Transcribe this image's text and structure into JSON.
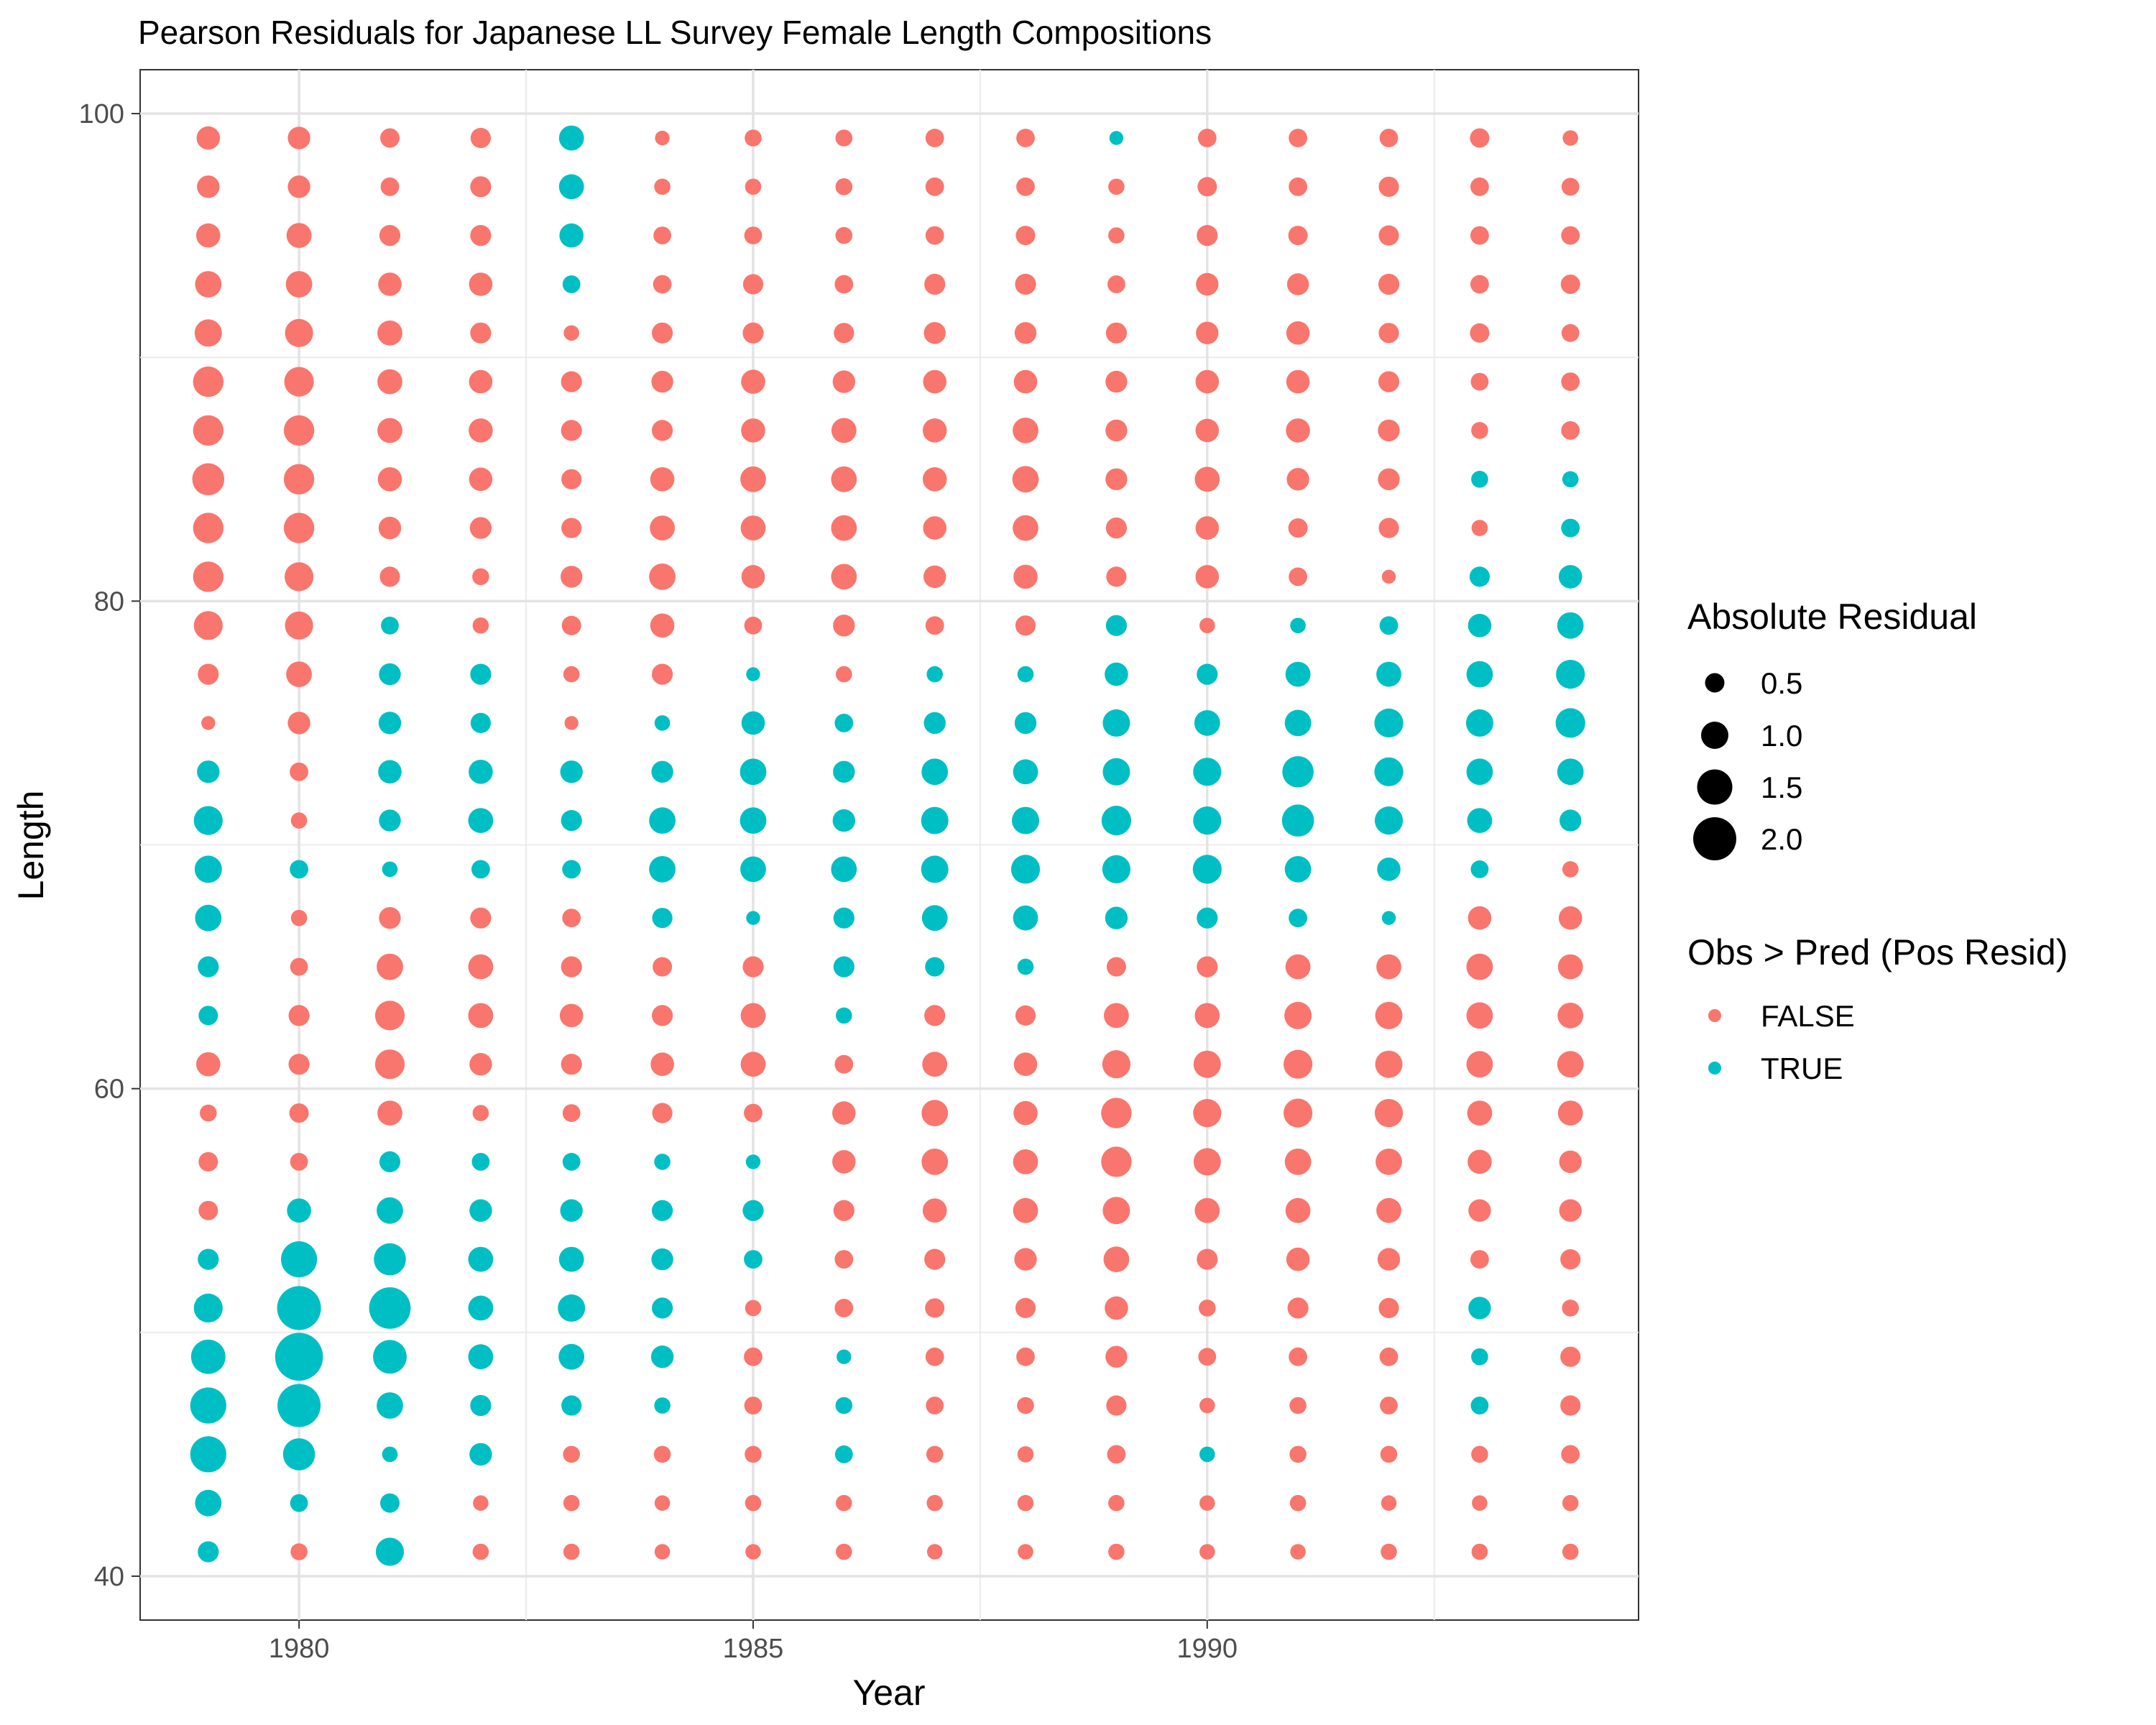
{
  "chart_data": {
    "type": "scatter",
    "title": "Pearson Residuals for Japanese LL Survey Female Length Compositions",
    "xlabel": "Year",
    "ylabel": "Length",
    "xlim": [
      1978.25,
      1994.75
    ],
    "ylim": [
      38.2,
      101.8
    ],
    "x_ticks": [
      1980,
      1985,
      1990
    ],
    "y_ticks": [
      40,
      60,
      80,
      100
    ],
    "grid": true,
    "legend_position": "right",
    "years": [
      1979,
      1980,
      1981,
      1982,
      1983,
      1984,
      1985,
      1986,
      1987,
      1988,
      1989,
      1990,
      1991,
      1992,
      1993,
      1994
    ],
    "lengths": [
      41,
      43,
      45,
      47,
      49,
      51,
      53,
      55,
      57,
      59,
      61,
      63,
      65,
      67,
      69,
      71,
      73,
      75,
      77,
      79,
      81,
      83,
      85,
      87,
      89,
      91,
      93,
      95,
      97,
      99
    ],
    "size_legend": {
      "title": "Absolute Residual",
      "labels": [
        "0.5",
        "1.0",
        "1.5",
        "2.0"
      ],
      "values": [
        0.5,
        1.0,
        1.5,
        2.0
      ]
    },
    "color_legend": {
      "title": "Obs > Pred (Pos Resid)",
      "labels": [
        "FALSE",
        "TRUE"
      ],
      "colors": [
        "#F8766D",
        "#00BFC4"
      ]
    },
    "series": [
      {
        "year": 1979,
        "abs": [
          0.6,
          0.95,
          1.55,
          1.55,
          1.45,
          1.1,
          0.6,
          0.5,
          0.5,
          0.35,
          0.8,
          0.5,
          0.6,
          0.95,
          1.0,
          1.1,
          0.7,
          0.15,
          0.6,
          1.1,
          1.2,
          1.2,
          1.3,
          1.2,
          1.2,
          1.0,
          0.95,
          0.8,
          0.7,
          0.75
        ],
        "pos": [
          1,
          1,
          1,
          1,
          1,
          1,
          1,
          0,
          0,
          0,
          0,
          1,
          1,
          1,
          1,
          1,
          1,
          0,
          0,
          0,
          0,
          0,
          0,
          0,
          0,
          0,
          0,
          0,
          0,
          0
        ]
      },
      {
        "year": 1980,
        "abs": [
          0.35,
          0.4,
          1.3,
          2.0,
          2.3,
          2.05,
          1.55,
          0.8,
          0.4,
          0.5,
          0.6,
          0.6,
          0.4,
          0.3,
          0.45,
          0.3,
          0.45,
          0.7,
          0.9,
          1.05,
          1.1,
          1.2,
          1.2,
          1.2,
          1.15,
          1.05,
          0.95,
          0.85,
          0.7,
          0.7
        ],
        "pos": [
          0,
          1,
          1,
          1,
          1,
          1,
          1,
          1,
          0,
          0,
          0,
          0,
          0,
          0,
          1,
          0,
          0,
          0,
          0,
          0,
          0,
          0,
          0,
          0,
          0,
          0,
          0,
          0,
          0,
          0
        ]
      },
      {
        "year": 1981,
        "abs": [
          1.05,
          0.5,
          0.25,
          0.95,
          1.4,
          1.9,
          1.3,
          0.95,
          0.6,
          0.85,
          1.15,
          1.15,
          0.95,
          0.65,
          0.25,
          0.65,
          0.75,
          0.7,
          0.65,
          0.4,
          0.55,
          0.7,
          0.8,
          0.85,
          0.85,
          0.85,
          0.75,
          0.6,
          0.45,
          0.5
        ],
        "pos": [
          1,
          1,
          1,
          1,
          1,
          1,
          1,
          1,
          1,
          0,
          0,
          0,
          0,
          0,
          1,
          1,
          1,
          1,
          1,
          1,
          0,
          0,
          0,
          0,
          0,
          0,
          0,
          0,
          0,
          0
        ]
      },
      {
        "year": 1982,
        "abs": [
          0.3,
          0.25,
          0.7,
          0.6,
          0.85,
          0.85,
          0.85,
          0.7,
          0.4,
          0.3,
          0.7,
          0.85,
          0.85,
          0.6,
          0.45,
          0.85,
          0.8,
          0.55,
          0.6,
          0.3,
          0.35,
          0.65,
          0.75,
          0.8,
          0.75,
          0.6,
          0.75,
          0.6,
          0.6,
          0.55
        ],
        "pos": [
          0,
          0,
          1,
          1,
          1,
          1,
          1,
          1,
          1,
          0,
          0,
          0,
          0,
          0,
          1,
          1,
          1,
          1,
          1,
          0,
          0,
          0,
          0,
          0,
          0,
          0,
          0,
          0,
          0,
          0
        ]
      },
      {
        "year": 1983,
        "abs": [
          0.3,
          0.3,
          0.35,
          0.55,
          0.9,
          1.0,
          0.85,
          0.7,
          0.4,
          0.4,
          0.6,
          0.75,
          0.6,
          0.45,
          0.45,
          0.6,
          0.7,
          0.15,
          0.3,
          0.5,
          0.65,
          0.55,
          0.55,
          0.6,
          0.6,
          0.25,
          0.4,
          0.8,
          0.85,
          0.85
        ],
        "pos": [
          0,
          0,
          0,
          1,
          1,
          1,
          1,
          1,
          1,
          0,
          0,
          0,
          0,
          0,
          1,
          1,
          1,
          0,
          0,
          0,
          0,
          0,
          0,
          0,
          0,
          0,
          1,
          1,
          1,
          1
        ]
      },
      {
        "year": 1984,
        "abs": [
          0.25,
          0.25,
          0.35,
          0.3,
          0.7,
          0.6,
          0.65,
          0.6,
          0.3,
          0.55,
          0.75,
          0.6,
          0.5,
          0.55,
          0.95,
          0.95,
          0.65,
          0.25,
          0.6,
          0.8,
          0.95,
          0.85,
          0.8,
          0.6,
          0.65,
          0.6,
          0.45,
          0.4,
          0.3,
          0.2
        ],
        "pos": [
          0,
          0,
          0,
          1,
          1,
          1,
          1,
          1,
          1,
          0,
          0,
          0,
          0,
          1,
          1,
          1,
          1,
          1,
          0,
          0,
          0,
          0,
          0,
          0,
          0,
          0,
          0,
          0,
          0,
          0
        ]
      },
      {
        "year": 1985,
        "abs": [
          0.25,
          0.3,
          0.35,
          0.4,
          0.45,
          0.3,
          0.45,
          0.6,
          0.2,
          0.45,
          0.85,
          0.85,
          0.6,
          0.15,
          0.9,
          0.95,
          0.95,
          0.75,
          0.15,
          0.4,
          0.75,
          0.85,
          0.9,
          0.8,
          0.8,
          0.6,
          0.55,
          0.4,
          0.3,
          0.35
        ],
        "pos": [
          0,
          0,
          0,
          0,
          0,
          0,
          1,
          1,
          1,
          0,
          0,
          0,
          0,
          1,
          1,
          1,
          1,
          1,
          1,
          0,
          0,
          0,
          0,
          0,
          0,
          0,
          0,
          0,
          0,
          0
        ]
      },
      {
        "year": 1986,
        "abs": [
          0.3,
          0.3,
          0.4,
          0.35,
          0.2,
          0.45,
          0.45,
          0.6,
          0.75,
          0.75,
          0.45,
          0.3,
          0.6,
          0.6,
          0.9,
          0.7,
          0.65,
          0.45,
          0.3,
          0.65,
          0.9,
          0.9,
          0.9,
          0.85,
          0.7,
          0.55,
          0.45,
          0.35,
          0.35,
          0.35
        ],
        "pos": [
          0,
          0,
          1,
          1,
          1,
          0,
          0,
          0,
          0,
          0,
          0,
          1,
          1,
          1,
          1,
          1,
          1,
          1,
          0,
          0,
          0,
          0,
          0,
          0,
          0,
          0,
          0,
          0,
          0,
          0
        ]
      },
      {
        "year": 1987,
        "abs": [
          0.25,
          0.3,
          0.35,
          0.4,
          0.45,
          0.5,
          0.6,
          0.8,
          0.95,
          0.95,
          0.85,
          0.6,
          0.5,
          0.9,
          1.0,
          1.0,
          0.95,
          0.65,
          0.3,
          0.45,
          0.7,
          0.75,
          0.8,
          0.8,
          0.75,
          0.65,
          0.6,
          0.45,
          0.45,
          0.45
        ],
        "pos": [
          0,
          0,
          0,
          0,
          0,
          0,
          0,
          0,
          0,
          0,
          0,
          0,
          1,
          1,
          1,
          1,
          1,
          1,
          1,
          0,
          0,
          0,
          0,
          0,
          0,
          0,
          0,
          0,
          0,
          0
        ]
      },
      {
        "year": 1988,
        "abs": [
          0.25,
          0.3,
          0.3,
          0.35,
          0.45,
          0.55,
          0.7,
          0.85,
          0.85,
          0.8,
          0.75,
          0.55,
          0.3,
          0.85,
          1.1,
          1.0,
          0.85,
          0.65,
          0.3,
          0.55,
          0.8,
          0.9,
          0.95,
          0.9,
          0.75,
          0.65,
          0.6,
          0.5,
          0.45,
          0.45
        ],
        "pos": [
          0,
          0,
          0,
          0,
          0,
          0,
          0,
          0,
          0,
          0,
          0,
          0,
          1,
          1,
          1,
          1,
          1,
          1,
          1,
          0,
          0,
          0,
          0,
          0,
          0,
          0,
          0,
          0,
          0,
          0
        ]
      },
      {
        "year": 1989,
        "abs": [
          0.3,
          0.3,
          0.45,
          0.55,
          0.65,
          0.75,
          0.9,
          1.0,
          1.2,
          1.2,
          1.05,
          0.85,
          0.5,
          0.7,
          1.05,
          1.15,
          1.0,
          1.0,
          0.75,
          0.6,
          0.55,
          0.6,
          0.65,
          0.65,
          0.65,
          0.6,
          0.4,
          0.3,
          0.3,
          0.15
        ],
        "pos": [
          0,
          0,
          0,
          0,
          0,
          0,
          0,
          0,
          0,
          0,
          0,
          0,
          0,
          1,
          1,
          1,
          1,
          1,
          1,
          1,
          0,
          0,
          0,
          0,
          0,
          0,
          0,
          0,
          0,
          1
        ]
      },
      {
        "year": 1990,
        "abs": [
          0.25,
          0.25,
          0.25,
          0.25,
          0.4,
          0.35,
          0.6,
          0.85,
          1.0,
          1.05,
          1.0,
          0.85,
          0.6,
          0.6,
          1.1,
          1.05,
          1.05,
          0.9,
          0.6,
          0.25,
          0.75,
          0.75,
          0.85,
          0.75,
          0.75,
          0.7,
          0.7,
          0.6,
          0.5,
          0.45
        ],
        "pos": [
          0,
          0,
          1,
          0,
          0,
          0,
          0,
          0,
          0,
          0,
          0,
          0,
          0,
          1,
          1,
          1,
          1,
          1,
          1,
          0,
          0,
          0,
          0,
          0,
          0,
          0,
          0,
          0,
          0,
          0
        ]
      },
      {
        "year": 1991,
        "abs": [
          0.25,
          0.3,
          0.35,
          0.35,
          0.45,
          0.6,
          0.75,
          0.85,
          0.95,
          1.1,
          1.1,
          1.0,
          0.85,
          0.45,
          0.95,
          1.3,
          1.25,
          0.95,
          0.85,
          0.25,
          0.45,
          0.5,
          0.7,
          0.8,
          0.75,
          0.75,
          0.65,
          0.5,
          0.45,
          0.45
        ],
        "pos": [
          0,
          0,
          0,
          0,
          0,
          0,
          0,
          0,
          0,
          0,
          0,
          0,
          0,
          1,
          1,
          1,
          1,
          1,
          1,
          1,
          0,
          0,
          0,
          0,
          0,
          0,
          0,
          0,
          0,
          0
        ]
      },
      {
        "year": 1992,
        "abs": [
          0.3,
          0.25,
          0.35,
          0.4,
          0.45,
          0.55,
          0.7,
          0.85,
          0.95,
          1.05,
          1.0,
          1.0,
          0.85,
          0.15,
          0.75,
          1.05,
          1.1,
          1.1,
          0.85,
          0.45,
          0.15,
          0.55,
          0.65,
          0.65,
          0.6,
          0.55,
          0.6,
          0.55,
          0.55,
          0.45
        ],
        "pos": [
          0,
          0,
          0,
          0,
          0,
          0,
          0,
          0,
          0,
          0,
          0,
          0,
          0,
          1,
          1,
          1,
          1,
          1,
          1,
          1,
          0,
          0,
          0,
          0,
          0,
          0,
          0,
          0,
          0,
          0
        ]
      },
      {
        "year": 1993,
        "abs": [
          0.3,
          0.25,
          0.35,
          0.4,
          0.35,
          0.7,
          0.45,
          0.7,
          0.8,
          0.85,
          0.95,
          0.95,
          0.95,
          0.75,
          0.4,
          0.85,
          0.95,
          1.0,
          0.95,
          0.75,
          0.55,
          0.3,
          0.35,
          0.35,
          0.4,
          0.5,
          0.45,
          0.45,
          0.45,
          0.5
        ],
        "pos": [
          0,
          0,
          0,
          1,
          1,
          1,
          0,
          0,
          0,
          0,
          0,
          0,
          0,
          0,
          1,
          1,
          1,
          1,
          1,
          1,
          1,
          0,
          1,
          0,
          0,
          0,
          0,
          0,
          0,
          0
        ]
      },
      {
        "year": 1994,
        "abs": [
          0.3,
          0.3,
          0.45,
          0.55,
          0.55,
          0.35,
          0.55,
          0.7,
          0.7,
          0.85,
          0.95,
          0.9,
          0.85,
          0.75,
          0.3,
          0.65,
          0.95,
          1.15,
          1.1,
          0.95,
          0.75,
          0.45,
          0.3,
          0.45,
          0.45,
          0.4,
          0.5,
          0.45,
          0.4,
          0.25
        ],
        "pos": [
          0,
          0,
          0,
          0,
          0,
          0,
          0,
          0,
          0,
          0,
          0,
          0,
          0,
          0,
          0,
          1,
          1,
          1,
          1,
          1,
          1,
          1,
          1,
          0,
          0,
          0,
          0,
          0,
          0,
          0
        ]
      }
    ]
  }
}
